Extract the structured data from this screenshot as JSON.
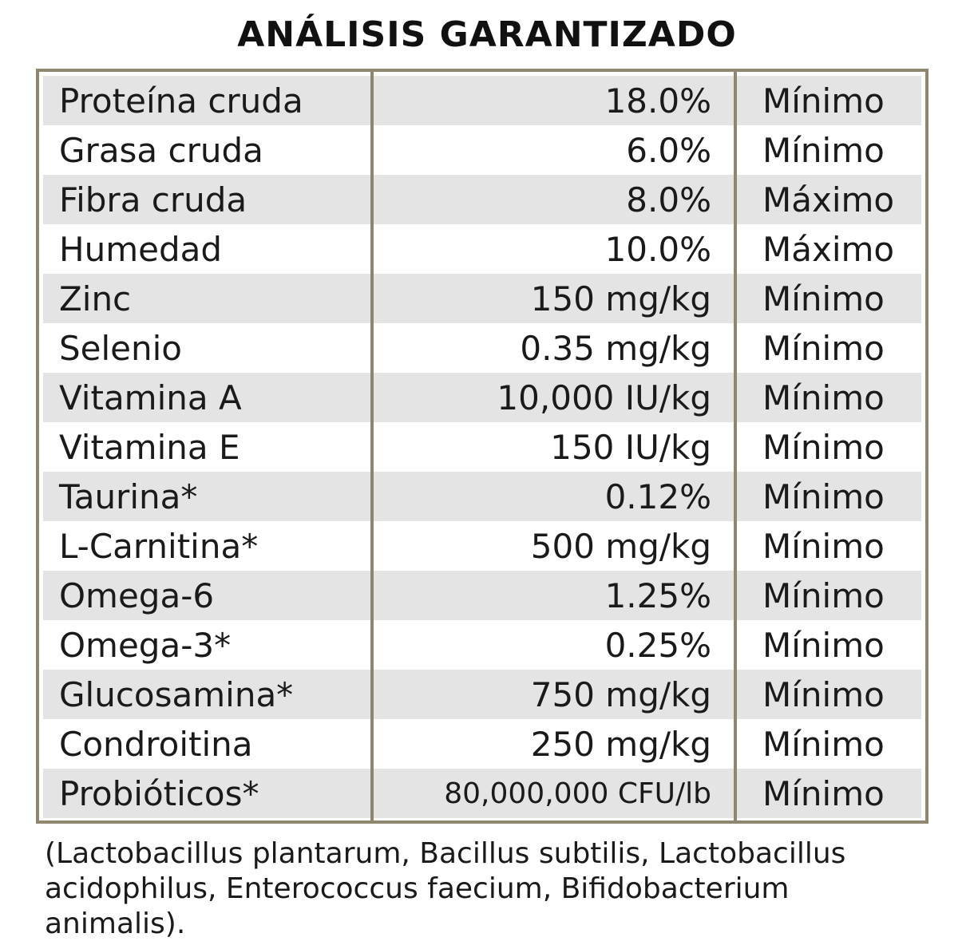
{
  "title": "ANÁLISIS GARANTIZADO",
  "rows": [
    {
      "name": "Proteína cruda",
      "value": "18.0%",
      "qualifier": "Mínimo"
    },
    {
      "name": "Grasa cruda",
      "value": "6.0%",
      "qualifier": "Mínimo"
    },
    {
      "name": "Fibra cruda",
      "value": "8.0%",
      "qualifier": "Máximo"
    },
    {
      "name": "Humedad",
      "value": "10.0%",
      "qualifier": "Máximo"
    },
    {
      "name": "Zinc",
      "value": "150 mg/kg",
      "qualifier": "Mínimo"
    },
    {
      "name": "Selenio",
      "value": "0.35 mg/kg",
      "qualifier": "Mínimo"
    },
    {
      "name": "Vitamina A",
      "value": "10,000 IU/kg",
      "qualifier": "Mínimo"
    },
    {
      "name": "Vitamina E",
      "value": "150 IU/kg",
      "qualifier": "Mínimo"
    },
    {
      "name": "Taurina*",
      "value": "0.12%",
      "qualifier": "Mínimo"
    },
    {
      "name": "L-Carnitina*",
      "value": "500 mg/kg",
      "qualifier": "Mínimo"
    },
    {
      "name": "Omega-6",
      "value": "1.25%",
      "qualifier": "Mínimo"
    },
    {
      "name": "Omega-3*",
      "value": "0.25%",
      "qualifier": "Mínimo"
    },
    {
      "name": "Glucosamina*",
      "value": "750 mg/kg",
      "qualifier": "Mínimo"
    },
    {
      "name": "Condroitina",
      "value": "250 mg/kg",
      "qualifier": "Mínimo"
    },
    {
      "name": "Probióticos*",
      "value": "80,000,000 CFU/lb",
      "qualifier": "Mínimo"
    }
  ],
  "footnote": "(Lactobacillus plantarum, Bacillus subtilis, Lactobacillus acidophilus, Enterococcus faecium, Bifidobacterium animalis).",
  "colors": {
    "border": "#8f8670",
    "row_shade": "#e4e4e4",
    "text": "#1a1a1a"
  }
}
